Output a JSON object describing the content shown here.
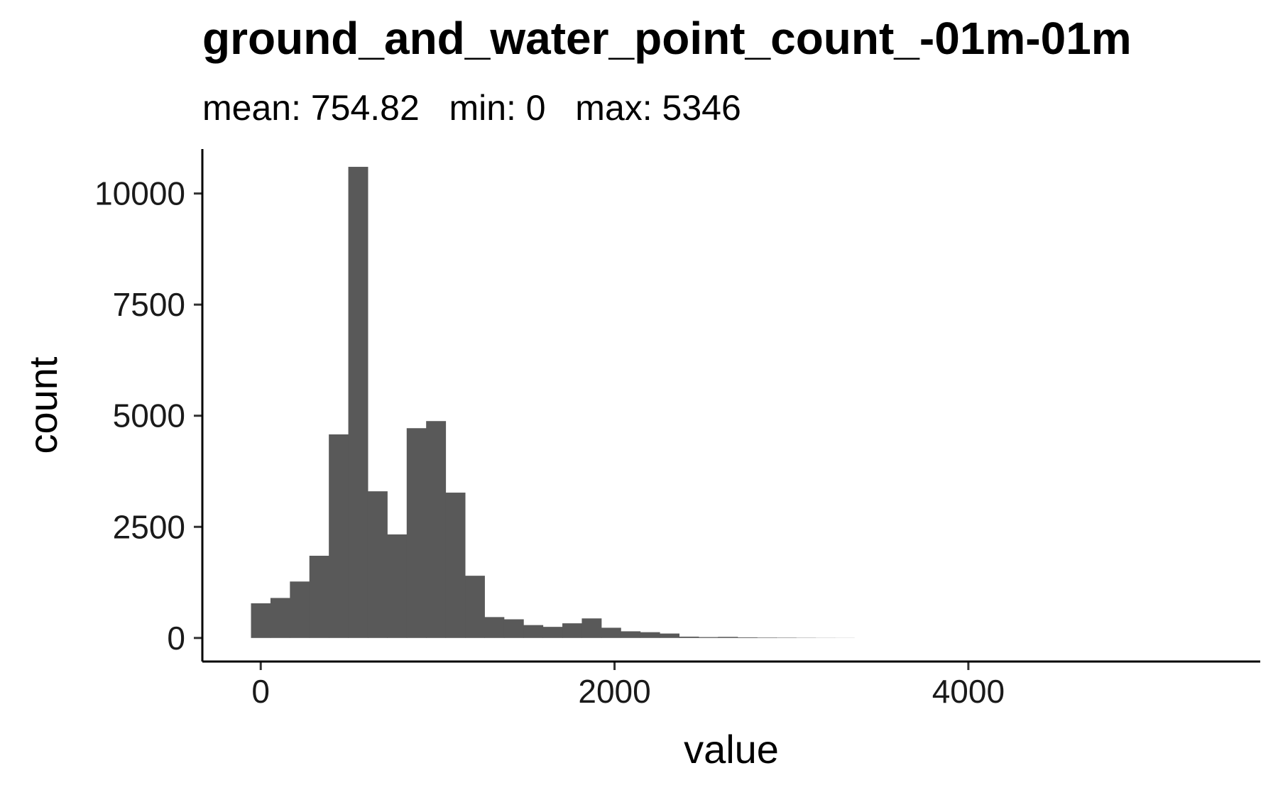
{
  "chart_data": {
    "type": "bar",
    "title": "ground_and_water_point_count_-01m-01m",
    "subtitle": "mean: 754.82   min: 0   max: 5346",
    "xlabel": "value",
    "ylabel": "count",
    "xlim": [
      -330,
      5650
    ],
    "ylim": [
      -530,
      11000
    ],
    "x_ticks": [
      0,
      2000,
      4000
    ],
    "y_ticks": [
      0,
      2500,
      5000,
      7500,
      10000
    ],
    "grid": false,
    "bar_color": "#595959",
    "bin_width": 110,
    "bins_start": -55,
    "values": [
      780,
      900,
      1270,
      1850,
      4580,
      10600,
      3300,
      2330,
      4720,
      4880,
      3270,
      1400,
      470,
      420,
      290,
      250,
      330,
      440,
      230,
      150,
      130,
      100,
      30,
      20,
      25,
      15,
      10,
      8,
      5,
      3,
      2
    ]
  }
}
